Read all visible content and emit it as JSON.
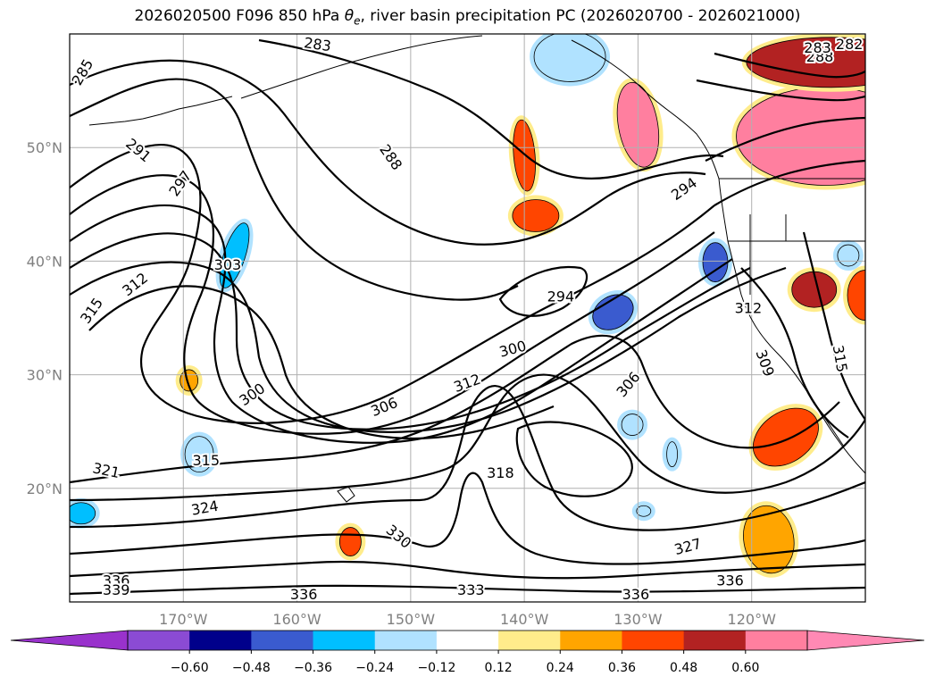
{
  "chart_data": {
    "type": "contour_map",
    "title": "2026020500 F096 850 hPa θe, river basin precipitation PC (2026020700 - 2026021000)",
    "title_parts": {
      "prefix": "2026020500 F096 850 hPa ",
      "symbol": "θ",
      "subscript": "e",
      "suffix": ", river basin precipitation PC (2026020700 - 2026021000)"
    },
    "map_extent": {
      "lon": [
        -180,
        -110
      ],
      "lat": [
        10,
        60
      ]
    },
    "grid": true,
    "lon_ticks": [
      {
        "value": -170,
        "label": "170°W"
      },
      {
        "value": -160,
        "label": "160°W"
      },
      {
        "value": -150,
        "label": "150°W"
      },
      {
        "value": -140,
        "label": "140°W"
      },
      {
        "value": -130,
        "label": "130°W"
      },
      {
        "value": -120,
        "label": "120°W"
      }
    ],
    "lat_ticks": [
      {
        "value": 20,
        "label": "20°N"
      },
      {
        "value": 30,
        "label": "30°N"
      },
      {
        "value": 40,
        "label": "40°N"
      },
      {
        "value": 50,
        "label": "50°N"
      }
    ],
    "contour_labels": [
      {
        "text": "285",
        "lon": -178.8,
        "lat": 56.6,
        "rot": -60
      },
      {
        "text": "283",
        "lon": -158.2,
        "lat": 59.0,
        "rot": 8
      },
      {
        "text": "291",
        "lon": -174.0,
        "lat": 49.7,
        "rot": 40
      },
      {
        "text": "297",
        "lon": -170.2,
        "lat": 46.8,
        "rot": -55
      },
      {
        "text": "288",
        "lon": -151.8,
        "lat": 49.1,
        "rot": 55
      },
      {
        "text": "303",
        "lon": -166.1,
        "lat": 39.6,
        "rot": 0
      },
      {
        "text": "312",
        "lon": -174.2,
        "lat": 37.9,
        "rot": -38
      },
      {
        "text": "315",
        "lon": -178.0,
        "lat": 35.6,
        "rot": -55
      },
      {
        "text": "300",
        "lon": -163.9,
        "lat": 28.2,
        "rot": -35
      },
      {
        "text": "294",
        "lon": -136.8,
        "lat": 36.8,
        "rot": 0
      },
      {
        "text": "300",
        "lon": -141.0,
        "lat": 32.2,
        "rot": -15
      },
      {
        "text": "312",
        "lon": -145.0,
        "lat": 29.2,
        "rot": -20
      },
      {
        "text": "306",
        "lon": -152.3,
        "lat": 27.1,
        "rot": -22
      },
      {
        "text": "306",
        "lon": -130.8,
        "lat": 29.1,
        "rot": -50
      },
      {
        "text": "315",
        "lon": -168.0,
        "lat": 22.4,
        "rot": 0
      },
      {
        "text": "321",
        "lon": -176.8,
        "lat": 21.5,
        "rot": 12
      },
      {
        "text": "318",
        "lon": -142.1,
        "lat": 21.3,
        "rot": 0
      },
      {
        "text": "324",
        "lon": -168.1,
        "lat": 18.2,
        "rot": -10
      },
      {
        "text": "330",
        "lon": -151.1,
        "lat": 15.7,
        "rot": 40
      },
      {
        "text": "327",
        "lon": -125.6,
        "lat": 14.8,
        "rot": -15
      },
      {
        "text": "336",
        "lon": -175.9,
        "lat": 11.8,
        "rot": 0
      },
      {
        "text": "339",
        "lon": -175.9,
        "lat": 11.0,
        "rot": 0
      },
      {
        "text": "336",
        "lon": -159.4,
        "lat": 10.6,
        "rot": 0
      },
      {
        "text": "333",
        "lon": -144.7,
        "lat": 11.0,
        "rot": 0
      },
      {
        "text": "336",
        "lon": -130.2,
        "lat": 10.6,
        "rot": 0
      },
      {
        "text": "336",
        "lon": -121.9,
        "lat": 11.8,
        "rot": 0
      },
      {
        "text": "294",
        "lon": -125.9,
        "lat": 46.3,
        "rot": -35
      },
      {
        "text": "288",
        "lon": -114.0,
        "lat": 57.9,
        "rot": 0
      },
      {
        "text": "283",
        "lon": -114.2,
        "lat": 58.7,
        "rot": 0
      },
      {
        "text": "282",
        "lon": -111.4,
        "lat": 59.0,
        "rot": 0
      },
      {
        "text": "312",
        "lon": -120.3,
        "lat": 35.8,
        "rot": 0
      },
      {
        "text": "309",
        "lon": -118.9,
        "lat": 31.0,
        "rot": 70
      },
      {
        "text": "315",
        "lon": -112.3,
        "lat": 31.4,
        "rot": 80
      }
    ],
    "colorbar": {
      "orientation": "horizontal",
      "extend": "both",
      "levels": [
        -0.72,
        -0.6,
        -0.48,
        -0.36,
        -0.24,
        -0.12,
        0.12,
        0.24,
        0.36,
        0.48,
        0.6,
        0.72
      ],
      "colors": [
        "#8b4bd4",
        "#00008b",
        "#3a5bcf",
        "#00bfff",
        "#b0e2ff",
        "#ffffff",
        "#ffec8b",
        "#ffa500",
        "#ff4500",
        "#b22222",
        "#ff7f9f"
      ],
      "under_color": "#9932cc",
      "over_color": "#ff89b4",
      "tick_labels": [
        "-0.60",
        "-0.48",
        "-0.36",
        "-0.24",
        "-0.12",
        "0.12",
        "0.24",
        "0.36",
        "0.48",
        "0.60"
      ]
    },
    "precip_blobs": [
      {
        "lon": -130.0,
        "lat": 52.0,
        "rx": 22,
        "ry": 48,
        "level": 0.6,
        "rot": -10
      },
      {
        "lon": -113.5,
        "lat": 51.0,
        "rx": 100,
        "ry": 55,
        "level": 0.6,
        "rot": 0
      },
      {
        "lon": -113.0,
        "lat": 57.5,
        "rx": 95,
        "ry": 28,
        "level": 0.48,
        "rot": 0
      },
      {
        "lon": -139.0,
        "lat": 44.0,
        "rx": 26,
        "ry": 18,
        "level": 0.36,
        "rot": 0
      },
      {
        "lon": -140.0,
        "lat": 49.3,
        "rx": 12,
        "ry": 40,
        "level": 0.36,
        "rot": -5
      },
      {
        "lon": -114.5,
        "lat": 37.5,
        "rx": 25,
        "ry": 20,
        "level": 0.48,
        "rot": 0
      },
      {
        "lon": -110.0,
        "lat": 37.0,
        "rx": 20,
        "ry": 28,
        "level": 0.36,
        "rot": 0
      },
      {
        "lon": -117.0,
        "lat": 24.5,
        "rx": 40,
        "ry": 28,
        "level": 0.36,
        "rot": -35
      },
      {
        "lon": -118.5,
        "lat": 15.5,
        "rx": 28,
        "ry": 38,
        "level": 0.24,
        "rot": -10
      },
      {
        "lon": -155.3,
        "lat": 15.3,
        "rx": 12,
        "ry": 16,
        "level": 0.36,
        "rot": 0
      },
      {
        "lon": -169.5,
        "lat": 29.5,
        "rx": 10,
        "ry": 12,
        "level": 0.24,
        "rot": 0
      },
      {
        "lon": -136.0,
        "lat": 58.0,
        "rx": 40,
        "ry": 28,
        "level": -0.24,
        "rot": 0
      },
      {
        "lon": -165.5,
        "lat": 40.5,
        "rx": 12,
        "ry": 38,
        "level": -0.36,
        "rot": 18
      },
      {
        "lon": -168.6,
        "lat": 23.0,
        "rx": 16,
        "ry": 20,
        "level": -0.24,
        "rot": 0
      },
      {
        "lon": -179.0,
        "lat": 17.8,
        "rx": 16,
        "ry": 12,
        "level": -0.36,
        "rot": 0
      },
      {
        "lon": -132.2,
        "lat": 35.5,
        "rx": 24,
        "ry": 18,
        "level": -0.48,
        "rot": -30
      },
      {
        "lon": -123.2,
        "lat": 39.9,
        "rx": 14,
        "ry": 22,
        "level": -0.48,
        "rot": 0
      },
      {
        "lon": -111.5,
        "lat": 40.5,
        "rx": 12,
        "ry": 12,
        "level": -0.24,
        "rot": 0
      },
      {
        "lon": -130.5,
        "lat": 25.6,
        "rx": 12,
        "ry": 12,
        "level": -0.24,
        "rot": 0
      },
      {
        "lon": -127.0,
        "lat": 23.0,
        "rx": 6,
        "ry": 14,
        "level": -0.24,
        "rot": 0
      },
      {
        "lon": -129.5,
        "lat": 18.0,
        "rx": 8,
        "ry": 6,
        "level": -0.24,
        "rot": 0
      }
    ]
  }
}
